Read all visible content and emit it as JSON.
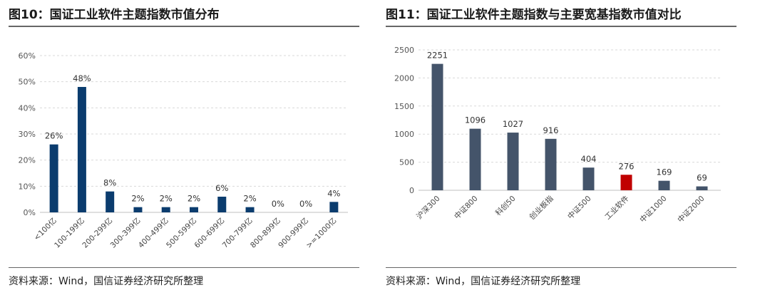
{
  "left": {
    "title": "图10：国证工业软件主题指数市值分布",
    "source": "资料来源：Wind，国信证券经济研究所整理",
    "chart_data": {
      "type": "bar",
      "categories": [
        "<100亿",
        "100-199亿",
        "200-299亿",
        "300-399亿",
        "400-499亿",
        "500-599亿",
        "600-699亿",
        "700-799亿",
        "800-899亿",
        "900-999亿",
        ">=1000亿"
      ],
      "values": [
        26,
        48,
        8,
        2,
        2,
        2,
        6,
        2,
        0,
        0,
        4
      ],
      "data_labels": [
        "26%",
        "48%",
        "8%",
        "2%",
        "2%",
        "2%",
        "6%",
        "2%",
        "0%",
        "0%",
        "4%"
      ],
      "yticks": [
        "0%",
        "10%",
        "20%",
        "30%",
        "40%",
        "50%",
        "60%"
      ],
      "ylim": [
        0,
        60
      ],
      "title": "",
      "xlabel": "",
      "ylabel": "",
      "grid": true,
      "bar_color": "#0b3c6e"
    }
  },
  "right": {
    "title": "图11：国证工业软件主题指数与主要宽基指数市值对比",
    "source": "资料来源：Wind，国信证券经济研究所整理",
    "chart_data": {
      "type": "bar",
      "categories": [
        "沪深300",
        "中证800",
        "科创50",
        "创业板指",
        "中证500",
        "工业软件",
        "中证1000",
        "中证2000"
      ],
      "values": [
        2251,
        1096,
        1027,
        916,
        404,
        276,
        169,
        69
      ],
      "data_labels": [
        "2251",
        "1096",
        "1027",
        "916",
        "404",
        "276",
        "169",
        "69"
      ],
      "yticks": [
        "0",
        "500",
        "1000",
        "1500",
        "2000",
        "2500"
      ],
      "ylim": [
        0,
        2500
      ],
      "title": "",
      "xlabel": "",
      "ylabel": "",
      "grid": true,
      "bar_color": "#44546a",
      "highlight": {
        "category": "工业软件",
        "color": "#c00000"
      }
    }
  }
}
